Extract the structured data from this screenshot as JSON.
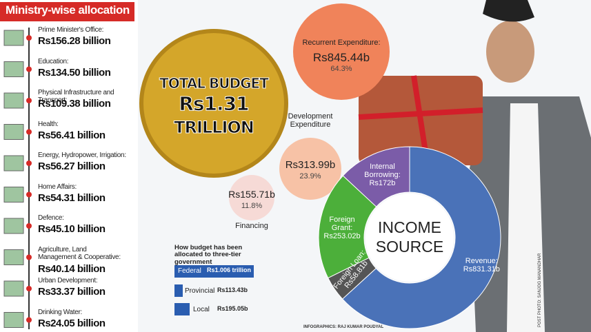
{
  "ministry": {
    "title": "Ministry-wise allocation",
    "items": [
      {
        "label": "Prime Minister's Office:",
        "value": "Rs156.28 billion"
      },
      {
        "label": "Education:",
        "value": "Rs134.50 billion"
      },
      {
        "label": "Physical Infrastructure and Transport:",
        "value": "Rs109.38 billion"
      },
      {
        "label": "Health:",
        "value": "Rs56.41 billion"
      },
      {
        "label": "Energy, Hydropower, Irrigation:",
        "value": "Rs56.27 billion"
      },
      {
        "label": "Home Affairs:",
        "value": "Rs54.31 billion"
      },
      {
        "label": "Defence:",
        "value": "Rs45.10 billion"
      },
      {
        "label": "Agriculture, Land Management & Cooperative:",
        "value": "Rs40.14 billion"
      },
      {
        "label": "Urban Development:",
        "value": "Rs33.37 billion"
      },
      {
        "label": "Drinking Water:",
        "value": "Rs24.05 billion"
      }
    ]
  },
  "coin": {
    "lines": [
      "TOTAL BUDGET",
      "Rs1.31",
      "TRILLION"
    ]
  },
  "bubbles": [
    {
      "title": "Recurrent Expenditure:",
      "amount": "Rs845.44b",
      "share": "64.3%"
    },
    {
      "title": "Development Expenditure",
      "amount": "Rs313.99b",
      "share": "23.9%"
    },
    {
      "title": "Financing",
      "amount": "Rs155.71b",
      "share": "11.8%"
    }
  ],
  "chart_data": {
    "type": "donut",
    "title": "INCOME SOURCE",
    "categories": [
      "Revenue:",
      "Foreign Loan:",
      "Foreign Grant:",
      "Internal Borrowing:"
    ],
    "values": [
      831.31,
      58.81,
      253.02,
      172
    ],
    "value_labels": [
      "Rs831.31b",
      "Rs58.81b",
      "Rs253.02b",
      "Rs172b"
    ],
    "colors": [
      "#4a72b8",
      "#555555",
      "#4caf3a",
      "#7b5ca8"
    ]
  },
  "government": {
    "title": "How budget has been allocated to three-tier government",
    "rows": [
      {
        "label": "Federal",
        "value": "Rs1.006 trillion"
      },
      {
        "label": "Provincial",
        "value": "Rs113.43b"
      },
      {
        "label": "Local",
        "value": "Rs195.05b"
      }
    ]
  },
  "credits": [
    "INFOGRAPHICS: RAJ KUMAR POUDYAL",
    "POST PHOTO: SANJOG MANANDHAR"
  ]
}
